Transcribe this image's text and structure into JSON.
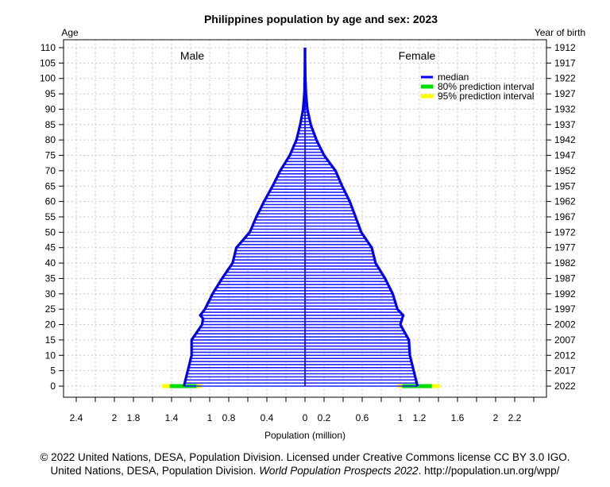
{
  "chart_data": {
    "type": "population-pyramid",
    "title": "Philippines population by age and sex: 2023",
    "left_axis_label": "Age",
    "right_axis_label": "Year of birth",
    "xlabel": "Population (million)",
    "male_label": "Male",
    "female_label": "Female",
    "xlim": [
      -2.5,
      2.5
    ],
    "ylim": [
      0,
      110
    ],
    "x_ticks": [
      {
        "v": -2.4,
        "label": "2.4"
      },
      {
        "v": -2.0,
        "label": "2"
      },
      {
        "v": -1.8,
        "label": "1.8"
      },
      {
        "v": -1.4,
        "label": "1.4"
      },
      {
        "v": -1.0,
        "label": "1"
      },
      {
        "v": -0.8,
        "label": "0.8"
      },
      {
        "v": -0.4,
        "label": "0.4"
      },
      {
        "v": 0,
        "label": "0"
      },
      {
        "v": 0.2,
        "label": "0.2"
      },
      {
        "v": 0.6,
        "label": "0.6"
      },
      {
        "v": 1.0,
        "label": "1"
      },
      {
        "v": 1.2,
        "label": "1.2"
      },
      {
        "v": 1.6,
        "label": "1.6"
      },
      {
        "v": 2.0,
        "label": "2"
      },
      {
        "v": 2.2,
        "label": "2.2"
      }
    ],
    "y_ticks": [
      0,
      5,
      10,
      15,
      20,
      25,
      30,
      35,
      40,
      45,
      50,
      55,
      60,
      65,
      70,
      75,
      80,
      85,
      90,
      95,
      100,
      105,
      110
    ],
    "birth_years": [
      "2022",
      "2017",
      "2012",
      "2007",
      "2002",
      "1997",
      "1992",
      "1987",
      "1982",
      "1977",
      "1972",
      "1967",
      "1962",
      "1957",
      "1952",
      "1947",
      "1942",
      "1937",
      "1932",
      "1927",
      "1922",
      "1917",
      "1912"
    ],
    "grid": true,
    "legend_position": "top-right",
    "legend": [
      {
        "label": "median",
        "color": "#0000ff"
      },
      {
        "label": "80% prediction interval",
        "color": "#00dd00"
      },
      {
        "label": "95% prediction interval",
        "color": "#ffff00"
      }
    ],
    "male_anchors": [
      [
        0,
        1.27
      ],
      [
        5,
        1.23
      ],
      [
        10,
        1.19
      ],
      [
        15,
        1.19
      ],
      [
        20,
        1.08
      ],
      [
        22,
        1.07
      ],
      [
        23,
        1.1
      ],
      [
        25,
        1.05
      ],
      [
        30,
        0.97
      ],
      [
        35,
        0.87
      ],
      [
        40,
        0.76
      ],
      [
        45,
        0.72
      ],
      [
        50,
        0.58
      ],
      [
        55,
        0.51
      ],
      [
        60,
        0.43
      ],
      [
        65,
        0.34
      ],
      [
        70,
        0.26
      ],
      [
        75,
        0.16
      ],
      [
        80,
        0.09
      ],
      [
        85,
        0.05
      ],
      [
        90,
        0.02
      ],
      [
        95,
        0.007
      ],
      [
        100,
        0.003
      ],
      [
        105,
        0.001
      ],
      [
        110,
        0.0005
      ]
    ],
    "female_anchors": [
      [
        0,
        1.18
      ],
      [
        5,
        1.14
      ],
      [
        10,
        1.1
      ],
      [
        15,
        1.09
      ],
      [
        20,
        1.0
      ],
      [
        22,
        1.02
      ],
      [
        23,
        1.03
      ],
      [
        25,
        0.97
      ],
      [
        30,
        0.92
      ],
      [
        35,
        0.84
      ],
      [
        40,
        0.74
      ],
      [
        45,
        0.7
      ],
      [
        50,
        0.59
      ],
      [
        55,
        0.53
      ],
      [
        60,
        0.47
      ],
      [
        65,
        0.39
      ],
      [
        70,
        0.32
      ],
      [
        75,
        0.2
      ],
      [
        80,
        0.12
      ],
      [
        85,
        0.06
      ],
      [
        90,
        0.025
      ],
      [
        95,
        0.01
      ],
      [
        100,
        0.004
      ],
      [
        105,
        0.001
      ],
      [
        110,
        0.0005
      ]
    ],
    "age0_intervals": {
      "male": {
        "p80": [
          1.14,
          1.42
        ],
        "p95": [
          1.09,
          1.5
        ]
      },
      "female": {
        "p80": [
          1.02,
          1.33
        ],
        "p95": [
          0.97,
          1.41
        ]
      }
    }
  },
  "footer": {
    "line1": "© 2022 United Nations, DESA, Population Division. Licensed under Creative Commons license CC BY 3.0 IGO.",
    "line2_prefix": "United Nations, DESA, Population Division. ",
    "line2_italic": "World Population Prospects 2022",
    "line2_suffix": ". http://population.un.org/wpp/"
  }
}
